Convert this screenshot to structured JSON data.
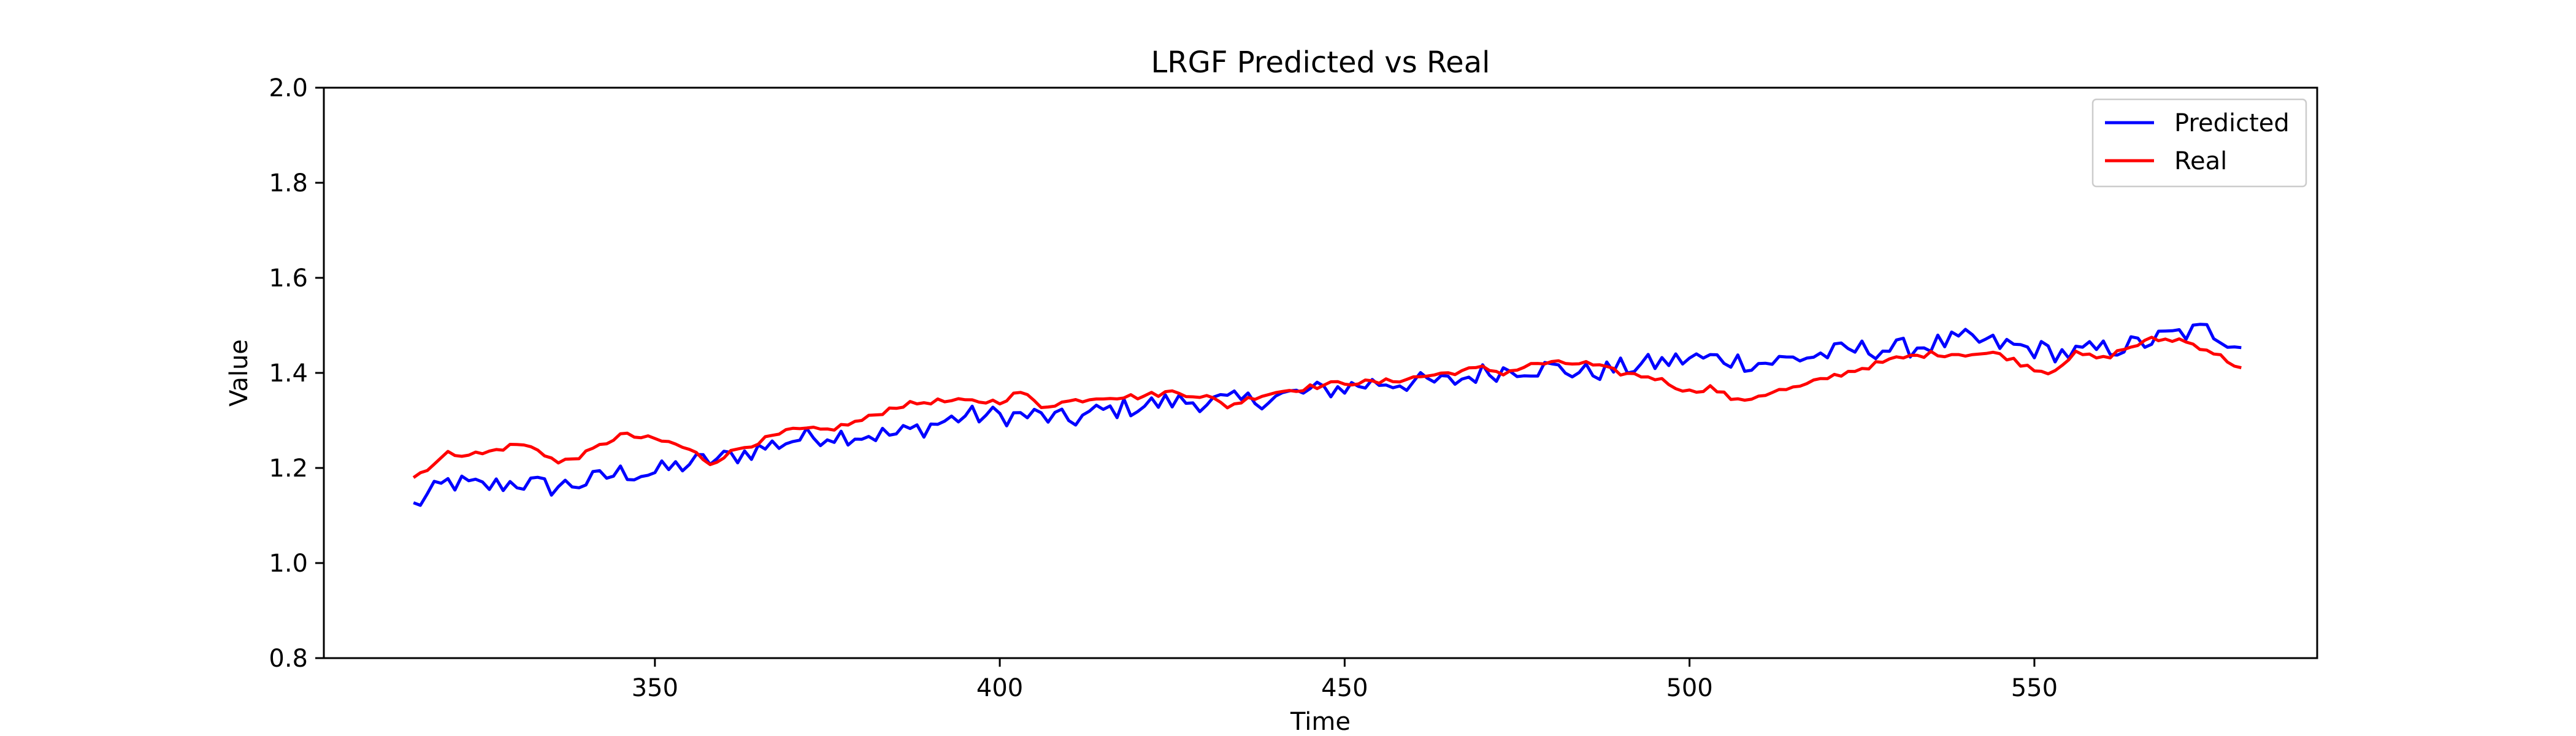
{
  "chart_data": {
    "type": "line",
    "title": "LRGF Predicted vs Real",
    "xlabel": "Time",
    "ylabel": "Value",
    "xlim": [
      302,
      591
    ],
    "ylim": [
      0.8,
      2.0
    ],
    "xticks": [
      350,
      400,
      450,
      500,
      550
    ],
    "yticks": [
      0.8,
      1.0,
      1.2,
      1.4,
      1.6,
      1.8,
      2.0
    ],
    "ytick_labels": [
      "0.8",
      "1.0",
      "1.2",
      "1.4",
      "1.6",
      "1.8",
      "2.0"
    ],
    "grid": false,
    "legend_position": "top-right",
    "x_start": 315,
    "x_end": 580,
    "series": [
      {
        "name": "Predicted",
        "color": "#0000ff",
        "keypoints": [
          [
            315,
            1.12
          ],
          [
            320,
            1.17
          ],
          [
            325,
            1.16
          ],
          [
            330,
            1.17
          ],
          [
            335,
            1.16
          ],
          [
            340,
            1.17
          ],
          [
            345,
            1.19
          ],
          [
            350,
            1.19
          ],
          [
            355,
            1.21
          ],
          [
            360,
            1.22
          ],
          [
            365,
            1.24
          ],
          [
            370,
            1.26
          ],
          [
            375,
            1.27
          ],
          [
            380,
            1.27
          ],
          [
            385,
            1.27
          ],
          [
            390,
            1.29
          ],
          [
            395,
            1.31
          ],
          [
            400,
            1.31
          ],
          [
            405,
            1.31
          ],
          [
            410,
            1.3
          ],
          [
            415,
            1.32
          ],
          [
            420,
            1.33
          ],
          [
            425,
            1.34
          ],
          [
            430,
            1.34
          ],
          [
            435,
            1.34
          ],
          [
            440,
            1.35
          ],
          [
            445,
            1.36
          ],
          [
            450,
            1.37
          ],
          [
            455,
            1.38
          ],
          [
            460,
            1.38
          ],
          [
            465,
            1.38
          ],
          [
            470,
            1.4
          ],
          [
            475,
            1.41
          ],
          [
            480,
            1.41
          ],
          [
            485,
            1.4
          ],
          [
            490,
            1.41
          ],
          [
            495,
            1.42
          ],
          [
            500,
            1.43
          ],
          [
            505,
            1.43
          ],
          [
            510,
            1.42
          ],
          [
            515,
            1.43
          ],
          [
            520,
            1.44
          ],
          [
            525,
            1.45
          ],
          [
            530,
            1.45
          ],
          [
            535,
            1.46
          ],
          [
            540,
            1.47
          ],
          [
            545,
            1.46
          ],
          [
            550,
            1.45
          ],
          [
            555,
            1.44
          ],
          [
            560,
            1.45
          ],
          [
            565,
            1.46
          ],
          [
            570,
            1.48
          ],
          [
            575,
            1.49
          ],
          [
            580,
            1.46
          ]
        ],
        "noise": 0.022
      },
      {
        "name": "Real",
        "color": "#ff0000",
        "keypoints": [
          [
            315,
            1.18
          ],
          [
            320,
            1.23
          ],
          [
            325,
            1.23
          ],
          [
            330,
            1.25
          ],
          [
            333,
            1.24
          ],
          [
            336,
            1.21
          ],
          [
            340,
            1.23
          ],
          [
            345,
            1.27
          ],
          [
            350,
            1.26
          ],
          [
            353,
            1.25
          ],
          [
            356,
            1.23
          ],
          [
            358,
            1.21
          ],
          [
            362,
            1.24
          ],
          [
            366,
            1.26
          ],
          [
            370,
            1.28
          ],
          [
            375,
            1.28
          ],
          [
            380,
            1.3
          ],
          [
            385,
            1.33
          ],
          [
            390,
            1.34
          ],
          [
            395,
            1.34
          ],
          [
            400,
            1.34
          ],
          [
            403,
            1.36
          ],
          [
            406,
            1.33
          ],
          [
            410,
            1.34
          ],
          [
            415,
            1.35
          ],
          [
            420,
            1.35
          ],
          [
            425,
            1.36
          ],
          [
            430,
            1.35
          ],
          [
            433,
            1.33
          ],
          [
            437,
            1.35
          ],
          [
            440,
            1.36
          ],
          [
            445,
            1.37
          ],
          [
            450,
            1.38
          ],
          [
            455,
            1.38
          ],
          [
            460,
            1.39
          ],
          [
            465,
            1.4
          ],
          [
            470,
            1.41
          ],
          [
            473,
            1.4
          ],
          [
            478,
            1.42
          ],
          [
            485,
            1.42
          ],
          [
            490,
            1.4
          ],
          [
            495,
            1.39
          ],
          [
            500,
            1.36
          ],
          [
            503,
            1.37
          ],
          [
            507,
            1.34
          ],
          [
            512,
            1.36
          ],
          [
            516,
            1.37
          ],
          [
            520,
            1.39
          ],
          [
            525,
            1.41
          ],
          [
            530,
            1.43
          ],
          [
            535,
            1.44
          ],
          [
            540,
            1.44
          ],
          [
            545,
            1.44
          ],
          [
            548,
            1.42
          ],
          [
            552,
            1.4
          ],
          [
            556,
            1.44
          ],
          [
            560,
            1.43
          ],
          [
            563,
            1.45
          ],
          [
            567,
            1.47
          ],
          [
            571,
            1.47
          ],
          [
            575,
            1.45
          ],
          [
            580,
            1.41
          ]
        ],
        "noise": 0.006
      }
    ]
  }
}
